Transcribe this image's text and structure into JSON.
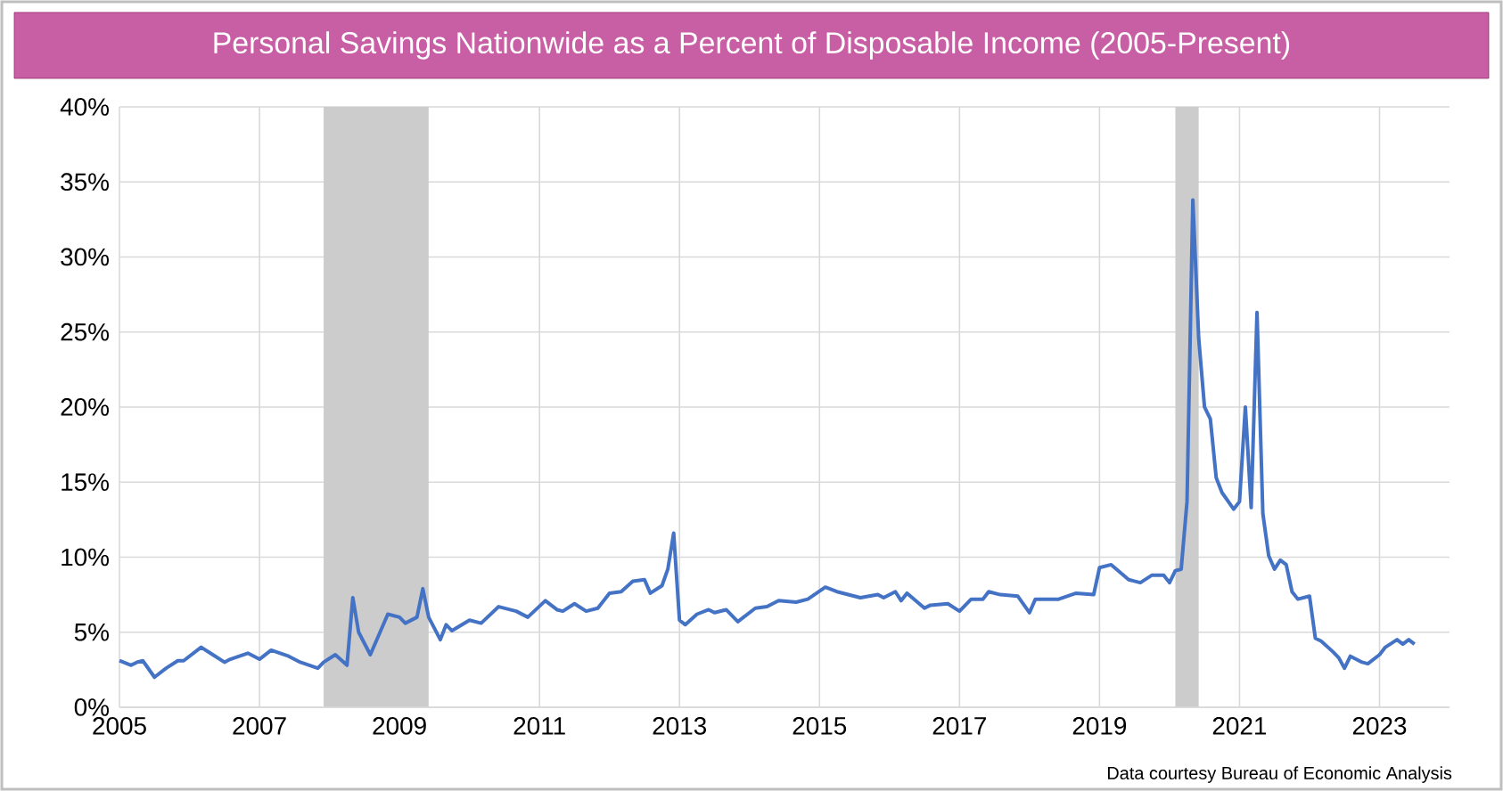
{
  "chart_data": {
    "type": "line",
    "title": "Personal Savings Nationwide as a Percent of Disposable Income (2005-Present)",
    "x": [
      "2005-01",
      "2005-03",
      "2005-04",
      "2005-05",
      "2005-07",
      "2005-09",
      "2005-11",
      "2005-12",
      "2006-03",
      "2006-05",
      "2006-07",
      "2006-08",
      "2006-11",
      "2007-01",
      "2007-03",
      "2007-06",
      "2007-08",
      "2007-11",
      "2007-12",
      "2008-02",
      "2008-04",
      "2008-05",
      "2008-06",
      "2008-08",
      "2008-11",
      "2009-01",
      "2009-02",
      "2009-04",
      "2009-05",
      "2009-06",
      "2009-08",
      "2009-09",
      "2009-10",
      "2010-01",
      "2010-03",
      "2010-06",
      "2010-09",
      "2010-11",
      "2011-02",
      "2011-04",
      "2011-05",
      "2011-07",
      "2011-09",
      "2011-11",
      "2012-01",
      "2012-03",
      "2012-05",
      "2012-07",
      "2012-08",
      "2012-10",
      "2012-11",
      "2012-12",
      "2013-01",
      "2013-02",
      "2013-04",
      "2013-06",
      "2013-07",
      "2013-09",
      "2013-11",
      "2014-02",
      "2014-04",
      "2014-06",
      "2014-09",
      "2014-11",
      "2015-02",
      "2015-04",
      "2015-08",
      "2015-11",
      "2015-12",
      "2016-02",
      "2016-03",
      "2016-04",
      "2016-07",
      "2016-08",
      "2016-11",
      "2017-01",
      "2017-03",
      "2017-05",
      "2017-06",
      "2017-08",
      "2017-11",
      "2018-01",
      "2018-02",
      "2018-06",
      "2018-09",
      "2018-12",
      "2019-01",
      "2019-03",
      "2019-06",
      "2019-08",
      "2019-10",
      "2019-12",
      "2020-01",
      "2020-02",
      "2020-03",
      "2020-04",
      "2020-05",
      "2020-06",
      "2020-07",
      "2020-08",
      "2020-09",
      "2020-10",
      "2020-12",
      "2021-01",
      "2021-02",
      "2021-03",
      "2021-04",
      "2021-05",
      "2021-06",
      "2021-07",
      "2021-08",
      "2021-09",
      "2021-10",
      "2021-11",
      "2022-01",
      "2022-02",
      "2022-03",
      "2022-05",
      "2022-06",
      "2022-07",
      "2022-08",
      "2022-10",
      "2022-11",
      "2023-01",
      "2023-02",
      "2023-04",
      "2023-05",
      "2023-06",
      "2023-07"
    ],
    "values": [
      3.1,
      2.8,
      3.0,
      3.1,
      2.0,
      2.6,
      3.1,
      3.1,
      4.0,
      3.5,
      3.0,
      3.2,
      3.6,
      3.2,
      3.8,
      3.4,
      3.0,
      2.6,
      3.0,
      3.5,
      2.8,
      7.3,
      5.0,
      3.5,
      6.2,
      6.0,
      5.6,
      6.0,
      7.9,
      6.0,
      4.5,
      5.5,
      5.1,
      5.8,
      5.6,
      6.7,
      6.4,
      6.0,
      7.1,
      6.5,
      6.4,
      6.9,
      6.4,
      6.6,
      7.6,
      7.7,
      8.4,
      8.5,
      7.6,
      8.1,
      9.2,
      11.6,
      5.8,
      5.5,
      6.2,
      6.5,
      6.3,
      6.5,
      5.7,
      6.6,
      6.7,
      7.1,
      7.0,
      7.2,
      8.0,
      7.7,
      7.3,
      7.5,
      7.3,
      7.7,
      7.1,
      7.6,
      6.6,
      6.8,
      6.9,
      6.4,
      7.2,
      7.2,
      7.7,
      7.5,
      7.4,
      6.3,
      7.2,
      7.2,
      7.6,
      7.5,
      9.3,
      9.5,
      8.5,
      8.3,
      8.8,
      8.8,
      8.3,
      9.1,
      9.2,
      13.7,
      33.8,
      24.6,
      20.0,
      19.2,
      15.3,
      14.3,
      13.2,
      13.7,
      20.0,
      13.3,
      26.3,
      12.9,
      10.1,
      9.2,
      9.8,
      9.5,
      7.7,
      7.2,
      7.4,
      4.6,
      4.4,
      3.7,
      3.3,
      2.6,
      3.4,
      3.0,
      2.9,
      3.5,
      4.0,
      4.5,
      4.2,
      4.5,
      4.2
    ],
    "color": "#4472c4",
    "line_style": "solid",
    "xlim": [
      "2005-01",
      "2024-01"
    ],
    "xticks": [
      "2005",
      "2007",
      "2009",
      "2011",
      "2013",
      "2015",
      "2017",
      "2019",
      "2021",
      "2023"
    ],
    "ylim": [
      0,
      40
    ],
    "yticks": [
      {
        "value": 0,
        "label": "0%"
      },
      {
        "value": 5,
        "label": "5%"
      },
      {
        "value": 10,
        "label": "10%"
      },
      {
        "value": 15,
        "label": "15%"
      },
      {
        "value": 20,
        "label": "20%"
      },
      {
        "value": 25,
        "label": "25%"
      },
      {
        "value": 30,
        "label": "30%"
      },
      {
        "value": 35,
        "label": "35%"
      },
      {
        "value": 40,
        "label": "40%"
      }
    ],
    "grid": true,
    "bands": [
      {
        "axis": "x",
        "from": "2007-12",
        "to": "2009-06",
        "color": "#cccccc"
      },
      {
        "axis": "x",
        "from": "2020-02",
        "to": "2020-06",
        "color": "#cccccc"
      }
    ],
    "annotations": [
      "Data courtesy Bureau of Economic Analysis"
    ]
  }
}
